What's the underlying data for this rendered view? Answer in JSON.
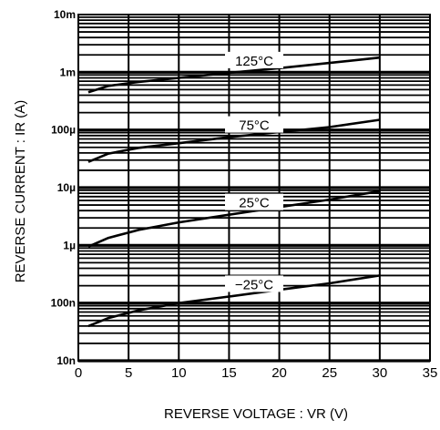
{
  "chart_data": {
    "type": "line",
    "xlabel": "REVERSE VOLTAGE : VR (V)",
    "ylabel": "REVERSE CURRENT : IR (A)",
    "xlim": [
      0,
      35
    ],
    "ylim": [
      1e-08,
      0.01
    ],
    "yscale": "log",
    "grid": true,
    "x_ticks": [
      0,
      5,
      10,
      15,
      20,
      25,
      30,
      35
    ],
    "x_tick_labels": [
      "0",
      "5",
      "10",
      "15",
      "20",
      "25",
      "30",
      "35"
    ],
    "y_ticks": [
      1e-08,
      1e-07,
      1e-06,
      1e-05,
      0.0001,
      0.001,
      0.01
    ],
    "y_tick_labels": [
      "10n",
      "100n",
      "1µ",
      "10µ",
      "100µ",
      "1m",
      "10m"
    ],
    "series": [
      {
        "name": "125°C",
        "x": [
          1,
          3,
          6,
          10,
          15,
          20,
          25,
          30
        ],
        "y": [
          0.00045,
          0.00058,
          0.00068,
          0.0008,
          0.00098,
          0.00118,
          0.00145,
          0.0018
        ]
      },
      {
        "name": "75°C",
        "x": [
          1,
          3,
          6,
          10,
          15,
          20,
          25,
          30
        ],
        "y": [
          2.8e-05,
          3.9e-05,
          4.9e-05,
          5.9e-05,
          7.5e-05,
          9.2e-05,
          0.000112,
          0.00015
        ]
      },
      {
        "name": "25°C",
        "x": [
          1,
          3,
          6,
          10,
          15,
          20,
          25,
          30
        ],
        "y": [
          9.5e-07,
          1.35e-06,
          1.85e-06,
          2.5e-06,
          3.4e-06,
          4.6e-06,
          6.2e-06,
          8.7e-06
        ]
      },
      {
        "name": "−25°C",
        "x": [
          1,
          3,
          6,
          10,
          15,
          20,
          25,
          30
        ],
        "y": [
          4e-08,
          5.5e-08,
          7.5e-08,
          1e-07,
          1.3e-07,
          1.7e-07,
          2.2e-07,
          3e-07
        ]
      }
    ]
  }
}
